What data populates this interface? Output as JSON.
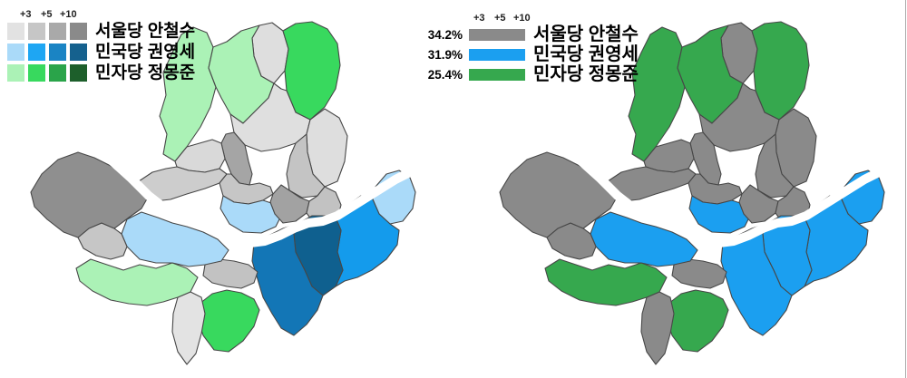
{
  "colors": {
    "background": "#ffffff",
    "border": "#474747",
    "river": "#ffffff"
  },
  "panels": {
    "left": {
      "legend": {
        "ticks": [
          "+3",
          "+5",
          "+10"
        ],
        "rows": [
          {
            "label": "서울당 안철수",
            "swatches": [
              "#e2e2e2",
              "#c6c6c6",
              "#a9a9a9",
              "#8a8a8a"
            ]
          },
          {
            "label": "민국당 권영세",
            "swatches": [
              "#aadaf9",
              "#1ea6f3",
              "#1a84c4",
              "#15618e"
            ]
          },
          {
            "label": "민자당 정몽준",
            "swatches": [
              "#abf2b6",
              "#38d95e",
              "#2aa44a",
              "#1d5f2b"
            ]
          }
        ]
      },
      "district_fills": {
        "eunpyeong": "#abf2b6",
        "gangbuk": "#abf2b6",
        "guro": "#abf2b6",
        "nowon": "#38d95e",
        "gwanak": "#38d95e",
        "dobong": "#dedede",
        "jungnang": "#dedede",
        "seongbuk": "#dfdfdf",
        "geumcheon": "#e3e3e3",
        "seodaemun": "#d9d9d9",
        "mapo": "#cdcdcd",
        "jung": "#c6c6c6",
        "yangcheon": "#c6c6c6",
        "dongdaemun": "#c4c4c4",
        "gwangjin": "#c2c2c2",
        "dongjak": "#c2c2c2",
        "jongno": "#a5a5a5",
        "seongdong": "#a2a2a2",
        "gangseo": "#8f8f8f",
        "yongsan": "#aadaf9",
        "yeongdeungpo": "#aadaf9",
        "gangdong": "#aadaf9",
        "songpa": "#149bec",
        "seocho": "#1376b6",
        "gangnam": "#0f608f"
      }
    },
    "right": {
      "legend": {
        "ticks": [
          "+3",
          "+5",
          "+10"
        ],
        "rows": [
          {
            "pct": "34.2%",
            "color": "#8a8a8a",
            "label": "서울당 안철수"
          },
          {
            "pct": "31.9%",
            "color": "#1b9ff0",
            "label": "민국당 권영세"
          },
          {
            "pct": "25.4%",
            "color": "#36a84e",
            "label": "민자당 정몽준"
          }
        ]
      },
      "district_fills": {
        "eunpyeong": "#36a84e",
        "gangbuk": "#36a84e",
        "nowon": "#36a84e",
        "guro": "#36a84e",
        "gwanak": "#36a84e",
        "gangseo": "#8a8a8a",
        "yangcheon": "#8a8a8a",
        "geumcheon": "#8a8a8a",
        "dongjak": "#8a8a8a",
        "dobong": "#8a8a8a",
        "jungnang": "#8a8a8a",
        "seodaemun": "#8a8a8a",
        "mapo": "#8a8a8a",
        "jung": "#8a8a8a",
        "jongno": "#8a8a8a",
        "seongbuk": "#8a8a8a",
        "dongdaemun": "#8a8a8a",
        "seongdong": "#8a8a8a",
        "gwangjin": "#8a8a8a",
        "yongsan": "#1b9ff0",
        "yeongdeungpo": "#1b9ff0",
        "gangdong": "#1b9ff0",
        "songpa": "#1b9ff0",
        "seocho": "#1b9ff0",
        "gangnam": "#1b9ff0"
      }
    }
  }
}
